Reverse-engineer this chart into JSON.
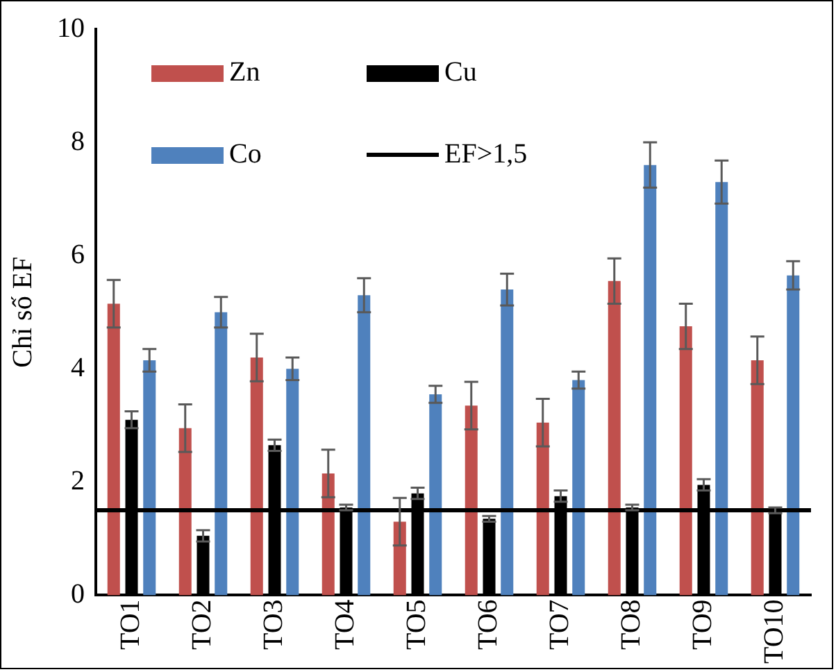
{
  "chart_data": {
    "type": "bar",
    "ylabel": "Chỉ số EF",
    "categories": [
      "TO1",
      "TO2",
      "TO3",
      "TO4",
      "TO5",
      "TO6",
      "TO7",
      "TO8",
      "TO9",
      "TO10"
    ],
    "series": [
      {
        "name": "Zn",
        "color": "#c0504d",
        "values": [
          5.15,
          2.95,
          4.2,
          2.15,
          1.3,
          3.35,
          3.05,
          5.55,
          4.75,
          4.15
        ],
        "errors": [
          0.42,
          0.42,
          0.42,
          0.42,
          0.42,
          0.42,
          0.42,
          0.4,
          0.4,
          0.42
        ]
      },
      {
        "name": "Cu",
        "color": "#000000",
        "values": [
          3.1,
          1.05,
          2.65,
          1.55,
          1.8,
          1.35,
          1.75,
          1.55,
          1.95,
          1.5
        ],
        "errors": [
          0.15,
          0.1,
          0.1,
          0.05,
          0.1,
          0.05,
          0.1,
          0.05,
          0.1,
          0.05
        ]
      },
      {
        "name": "Co",
        "color": "#4f81bd",
        "values": [
          4.15,
          5.0,
          4.0,
          5.3,
          3.55,
          5.4,
          3.8,
          7.6,
          7.3,
          5.65
        ],
        "errors": [
          0.2,
          0.27,
          0.2,
          0.3,
          0.15,
          0.28,
          0.15,
          0.4,
          0.38,
          0.25
        ]
      }
    ],
    "ref_lines": [
      {
        "axis": "y",
        "value": 1.5,
        "label": "EF>1,5",
        "color": "#000000"
      }
    ],
    "ylim": [
      0,
      10
    ],
    "yticks": [
      0,
      2,
      4,
      6,
      8,
      10
    ],
    "grid": false,
    "legend": "top left"
  }
}
